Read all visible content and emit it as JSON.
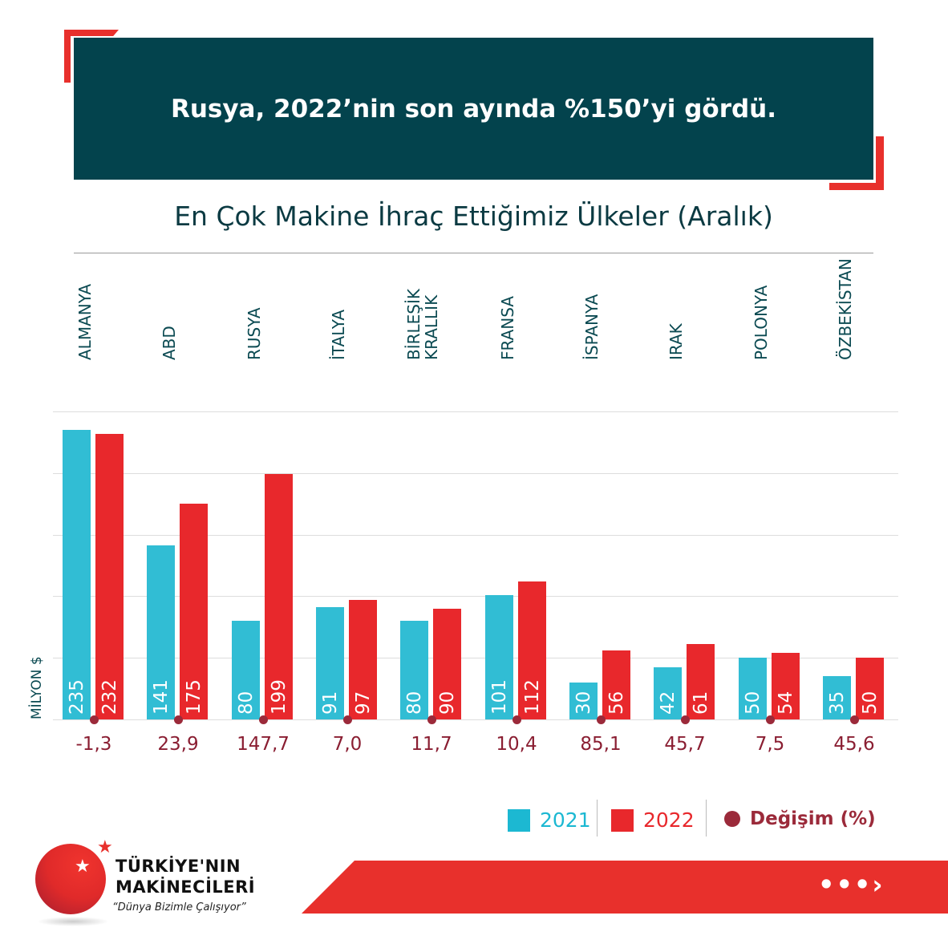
{
  "header": {
    "title": "Rusya, 2022’nin son ayında %150’yi gördü."
  },
  "subtitle": "En Çok Makine İhraç Ettiğimiz Ülkeler (Aralık)",
  "chart_data": {
    "type": "bar",
    "title": "En Çok Makine İhraç Ettiğimiz Ülkeler (Aralık)",
    "ylabel": "MİLYON $",
    "ylim": [
      0,
      250
    ],
    "grid": true,
    "categories": [
      "ALMANYA",
      "ABD",
      "RUSYA",
      "İTALYA",
      "BİRLEŞİK KRALLIK",
      "FRANSA",
      "İSPANYA",
      "IRAK",
      "POLONYA",
      "ÖZBEKİSTAN"
    ],
    "category_lines": [
      [
        "ALMANYA"
      ],
      [
        "ABD"
      ],
      [
        "RUSYA"
      ],
      [
        "İTALYA"
      ],
      [
        "BİRLEŞİK",
        "KRALLIK"
      ],
      [
        "FRANSA"
      ],
      [
        "İSPANYA"
      ],
      [
        "IRAK"
      ],
      [
        "POLONYA"
      ],
      [
        "ÖZBEKİSTAN"
      ]
    ],
    "series": [
      {
        "name": "2021",
        "color": "#31bdd4",
        "values": [
          235,
          141,
          80,
          91,
          80,
          101,
          30,
          42,
          50,
          35
        ]
      },
      {
        "name": "2022",
        "color": "#e8282c",
        "values": [
          232,
          175,
          199,
          97,
          90,
          112,
          56,
          61,
          54,
          50
        ]
      }
    ],
    "change": {
      "name": "Değişim (%)",
      "color": "#9b2a3a",
      "values": [
        "-1,3",
        "23,9",
        "147,7",
        "7,0",
        "11,7",
        "10,4",
        "85,1",
        "45,7",
        "7,5",
        "45,6"
      ]
    },
    "legend_position": "bottom-right"
  },
  "logo": {
    "line1": "TÜRKİYE'NIN",
    "line2": "MAKİNECİLERİ",
    "tagline": "“Dünya Bizimle Çalışıyor”"
  },
  "footer": {
    "arrow": "•••›"
  }
}
